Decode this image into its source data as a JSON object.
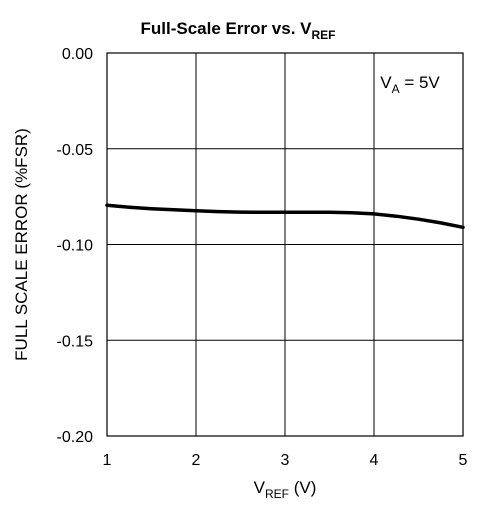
{
  "chart_data": {
    "type": "line",
    "title": "Full-Scale Error vs. V",
    "title_sub": "REF",
    "xlabel": "V",
    "xlabel_sub": "REF",
    "xlabel_suffix": " (V)",
    "ylabel": "FULL SCALE ERROR (%FSR)",
    "xlim": [
      1,
      5
    ],
    "ylim": [
      -0.2,
      0.0
    ],
    "x_ticks": [
      1,
      2,
      3,
      4,
      5
    ],
    "x_tick_labels": [
      "1",
      "2",
      "3",
      "4",
      "5"
    ],
    "y_ticks": [
      0.0,
      -0.05,
      -0.1,
      -0.15,
      -0.2
    ],
    "y_tick_labels": [
      "0.00",
      "-0.05",
      "-0.10",
      "-0.15",
      "-0.20"
    ],
    "grid": true,
    "annotation": {
      "pre": "V",
      "sub": "A",
      "post": " = 5V"
    },
    "series": [
      {
        "x": [
          1.0,
          1.25,
          1.5,
          1.75,
          2.0,
          2.25,
          2.5,
          2.75,
          3.0,
          3.25,
          3.5,
          3.75,
          4.0,
          4.25,
          4.5,
          4.75,
          5.0
        ],
        "y": [
          -0.0795,
          -0.0805,
          -0.0813,
          -0.0819,
          -0.0824,
          -0.0828,
          -0.0831,
          -0.0832,
          -0.0832,
          -0.0832,
          -0.0832,
          -0.0834,
          -0.084,
          -0.0852,
          -0.0868,
          -0.0887,
          -0.091
        ]
      }
    ]
  }
}
